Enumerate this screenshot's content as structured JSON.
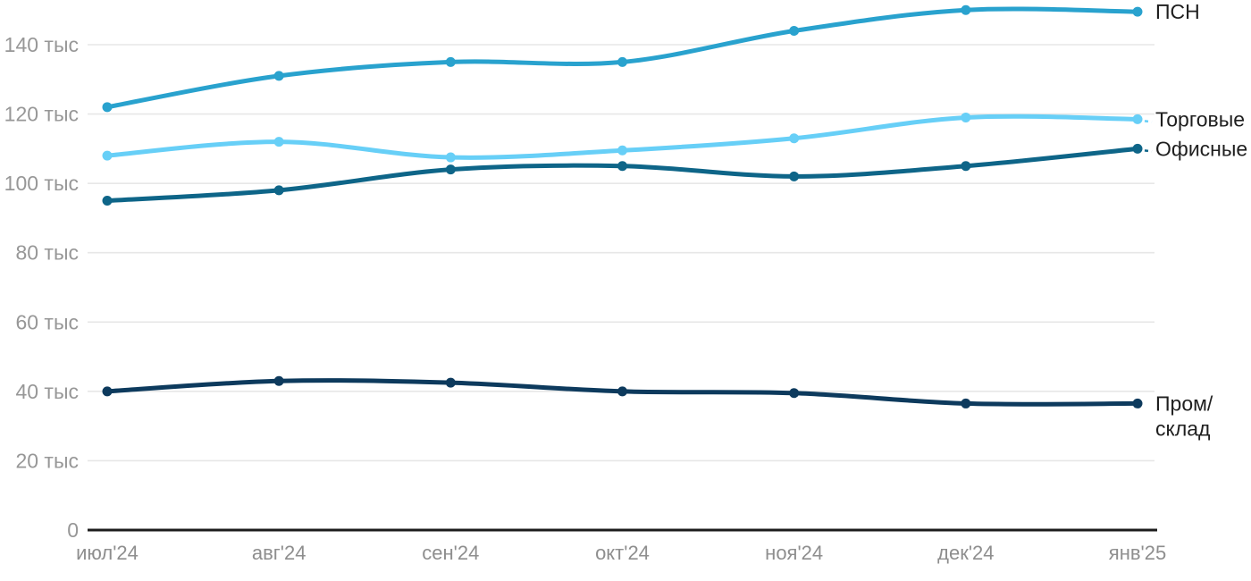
{
  "chart_data": {
    "type": "line",
    "title": "",
    "x_categories": [
      "июл'24",
      "авг'24",
      "сен'24",
      "окт'24",
      "ноя'24",
      "дек'24",
      "янв'25"
    ],
    "y_ticks": [
      {
        "value": 0,
        "label": "0"
      },
      {
        "value": 20,
        "label": "20 тыс"
      },
      {
        "value": 40,
        "label": "40 тыс"
      },
      {
        "value": 60,
        "label": "60 тыс"
      },
      {
        "value": 80,
        "label": "80 тыс"
      },
      {
        "value": 100,
        "label": "100 тыс"
      },
      {
        "value": 120,
        "label": "120 тыс"
      },
      {
        "value": 140,
        "label": "140 тыс"
      }
    ],
    "ylim": [
      0,
      153
    ],
    "grid": "horizontal",
    "legend_position": "right-edge-inline-labels",
    "series": [
      {
        "name": "ПСН",
        "slug": "psn",
        "color": "#29a2ce",
        "values": [
          122,
          131,
          135,
          135,
          144,
          150,
          149.5
        ],
        "label_lines": [
          "ПСН"
        ],
        "label_dash": false
      },
      {
        "name": "Торговые",
        "slug": "torgovye",
        "color": "#67cff7",
        "values": [
          108,
          112,
          107.5,
          109.5,
          113,
          119,
          118.5
        ],
        "label_lines": [
          "Торговые"
        ],
        "label_dash": true
      },
      {
        "name": "Офисные",
        "slug": "ofisnye",
        "color": "#0e6588",
        "values": [
          95,
          98,
          104,
          105,
          102,
          105,
          110
        ],
        "label_lines": [
          "Офисные"
        ],
        "label_dash": true
      },
      {
        "name": "Пром/склад",
        "slug": "prom-sklad",
        "color": "#0d3a5d",
        "values": [
          40,
          43,
          42.5,
          40,
          39.5,
          36.5,
          36.5
        ],
        "label_lines": [
          "Пром/",
          "склад"
        ],
        "label_dash": false
      }
    ],
    "colors": {
      "gridline": "#e7e7e7",
      "axis_line": "#1c1c1c",
      "y_tick_label": "#979797",
      "x_tick_label": "#8e8e8e",
      "series_label": "#1f1f1f",
      "background": "#ffffff"
    }
  }
}
